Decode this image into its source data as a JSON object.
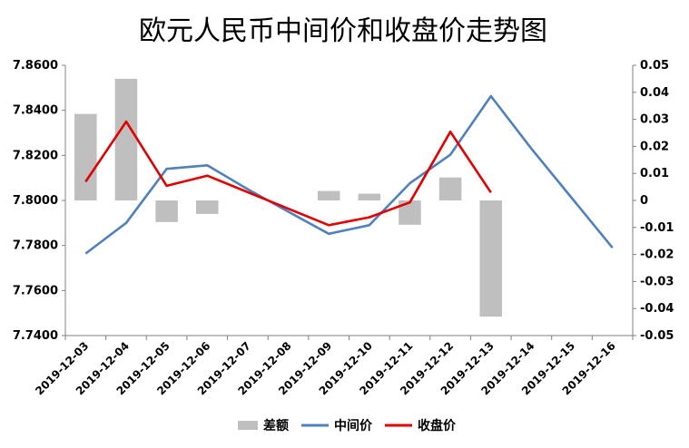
{
  "chart_data": {
    "type": "bar+line",
    "title": "欧元人民币中间价和收盘价走势图",
    "categories": [
      "2019-12-03",
      "2019-12-04",
      "2019-12-05",
      "2019-12-06",
      "2019-12-07",
      "2019-12-08",
      "2019-12-09",
      "2019-12-10",
      "2019-12-11",
      "2019-12-12",
      "2019-12-13",
      "2019-12-14",
      "2019-12-15",
      "2019-12-16"
    ],
    "y_left": {
      "min": 7.74,
      "max": 7.86,
      "ticks": [
        "7.7400",
        "7.7600",
        "7.7800",
        "7.8000",
        "7.8200",
        "7.8400",
        "7.8600"
      ]
    },
    "y_right": {
      "min": -0.05,
      "max": 0.05,
      "ticks": [
        "0.05",
        "0.04",
        "0.03",
        "0.02",
        "0.01",
        "0",
        "-0.01",
        "-0.02",
        "-0.03",
        "-0.04",
        "-0.05"
      ]
    },
    "series": [
      {
        "name": "差额",
        "type": "bar",
        "axis": "right",
        "color": "#bfbfbf",
        "values": [
          0.032,
          0.045,
          -0.008,
          -0.005,
          null,
          null,
          0.0035,
          0.0025,
          -0.009,
          0.0085,
          -0.043,
          null,
          null,
          null
        ]
      },
      {
        "name": "中间价",
        "type": "line",
        "axis": "left",
        "color": "#4f81bd",
        "values": [
          7.7764,
          7.79,
          7.814,
          7.8156,
          7.805,
          7.795,
          7.7852,
          7.789,
          7.8076,
          7.8203,
          7.8463,
          7.823,
          7.801,
          7.779
        ]
      },
      {
        "name": "收盘价",
        "type": "line",
        "axis": "left",
        "color": "#e00000",
        "values": [
          7.8083,
          7.835,
          7.8065,
          7.811,
          null,
          null,
          7.789,
          7.7925,
          7.7991,
          7.8305,
          7.8035,
          null,
          null,
          null
        ]
      }
    ],
    "grid": false,
    "legend": "bottom"
  }
}
